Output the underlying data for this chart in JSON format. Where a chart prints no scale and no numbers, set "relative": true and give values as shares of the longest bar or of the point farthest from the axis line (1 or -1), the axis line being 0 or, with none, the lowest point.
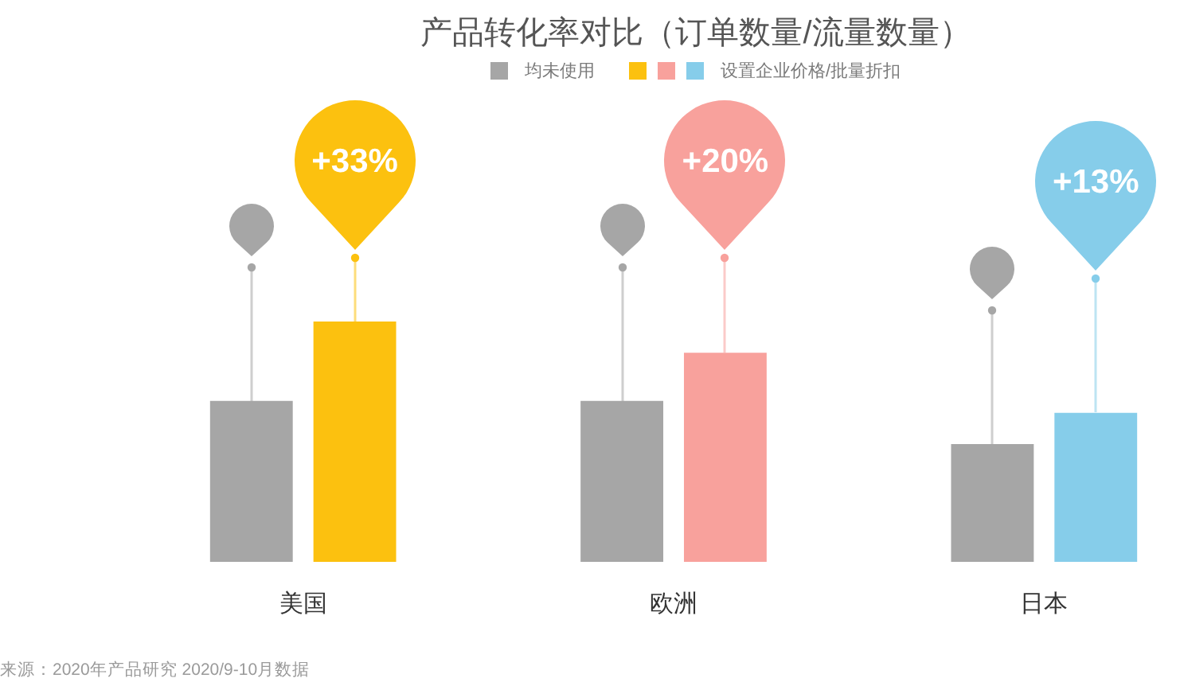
{
  "chart_data": {
    "type": "bar",
    "title": "产品转化率对比（订单数量/流量数量）",
    "categories": [
      "美国",
      "欧洲",
      "日本"
    ],
    "relative": true,
    "series": [
      {
        "name": "均未使用",
        "color": "#a6a6a6",
        "values": [
          0.67,
          0.67,
          0.49
        ]
      },
      {
        "name": "设置企业价格/批量折扣",
        "colors": [
          "#fcc10f",
          "#f8a19c",
          "#86cdea"
        ],
        "values": [
          1,
          0.87,
          0.62
        ]
      }
    ],
    "legend": "top",
    "annotations": [
      "+33%",
      "+20%",
      "+13%",
      "来源：2020年产品研究 2020/9-10月数据"
    ]
  }
}
